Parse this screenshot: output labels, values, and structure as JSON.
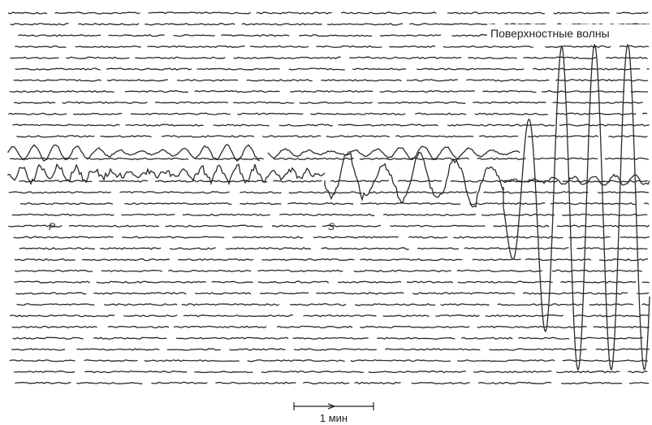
{
  "labels": {
    "surface_waves": "Поверхностные волны",
    "p_wave": "P",
    "s_wave": "S",
    "scale": "1 мин"
  }
}
